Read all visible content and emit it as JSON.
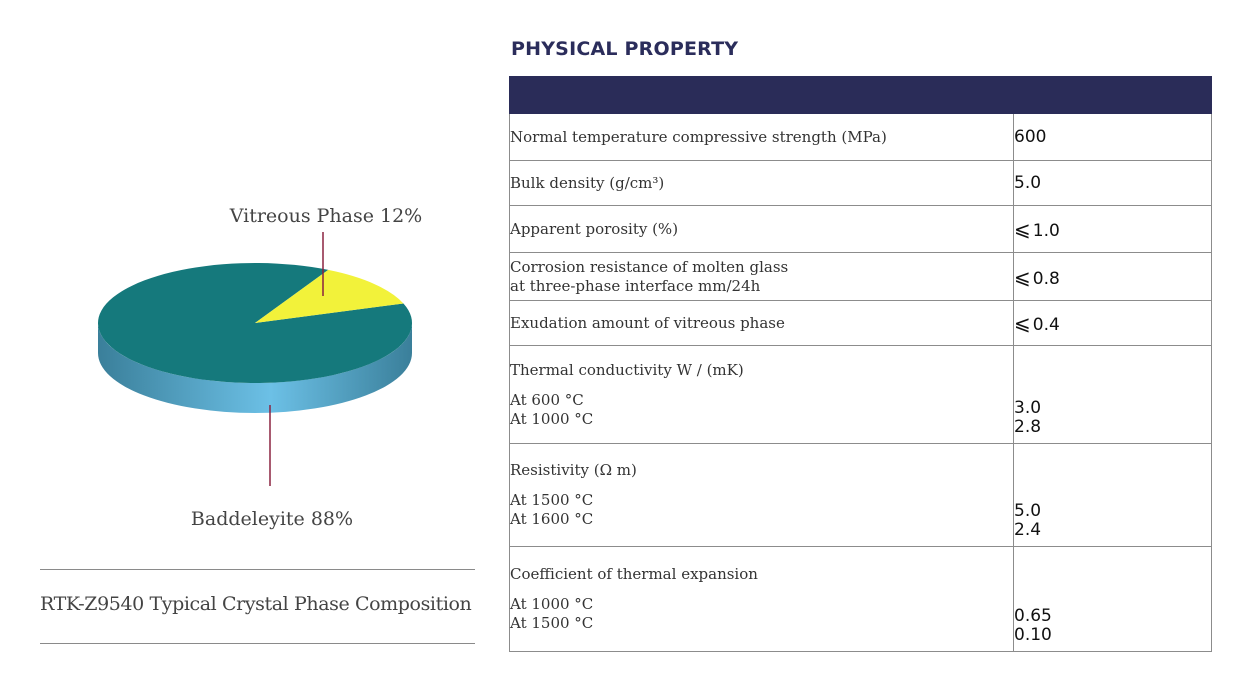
{
  "chart_data": {
    "type": "pie",
    "title": "RTK-Z9540 Typical Crystal Phase Composition",
    "slices": [
      {
        "label": "Vitreous Phase 12%",
        "value": 12,
        "color": "#f2f23a"
      },
      {
        "label": "Baddeleyite 88%",
        "value": 88,
        "color": "#15797c"
      }
    ],
    "side_color": "#4aa3c5",
    "leader_color": "#8a2240"
  },
  "caption": "RTK-Z9540 Typical Crystal Phase Composition",
  "section_title": "PHYSICAL PROPERTY",
  "header_color": "#2a2c58",
  "table": {
    "rows": [
      {
        "label": "Normal temperature compressive strength (MPa)",
        "value": "600"
      },
      {
        "label": "Bulk density (g/cm³)",
        "value": "5.0"
      },
      {
        "label": "Apparent porosity (%)",
        "symbol": "⩽",
        "value": "1.0"
      },
      {
        "label_lines": [
          "Corrosion resistance of molten glass",
          "at three-phase interface mm/24h"
        ],
        "symbol": "⩽",
        "value": "0.8"
      },
      {
        "label": "Exudation amount of vitreous phase",
        "symbol": "⩽",
        "value": "0.4"
      }
    ],
    "groups": [
      {
        "title": "Thermal conductivity W / (mK)",
        "subs": [
          {
            "label": "At 600 °C",
            "value": "3.0"
          },
          {
            "label": "At 1000 °C",
            "value": "2.8"
          }
        ]
      },
      {
        "title": "Resistivity (Ω m)",
        "subs": [
          {
            "label": "At 1500 °C",
            "value": "5.0"
          },
          {
            "label": "At 1600 °C",
            "value": "2.4"
          }
        ]
      },
      {
        "title": "Coefficient of thermal expansion",
        "subs": [
          {
            "label": "At 1000 °C",
            "value": "0.65"
          },
          {
            "label": "At 1500 °C",
            "value": "0.10"
          }
        ]
      }
    ]
  }
}
